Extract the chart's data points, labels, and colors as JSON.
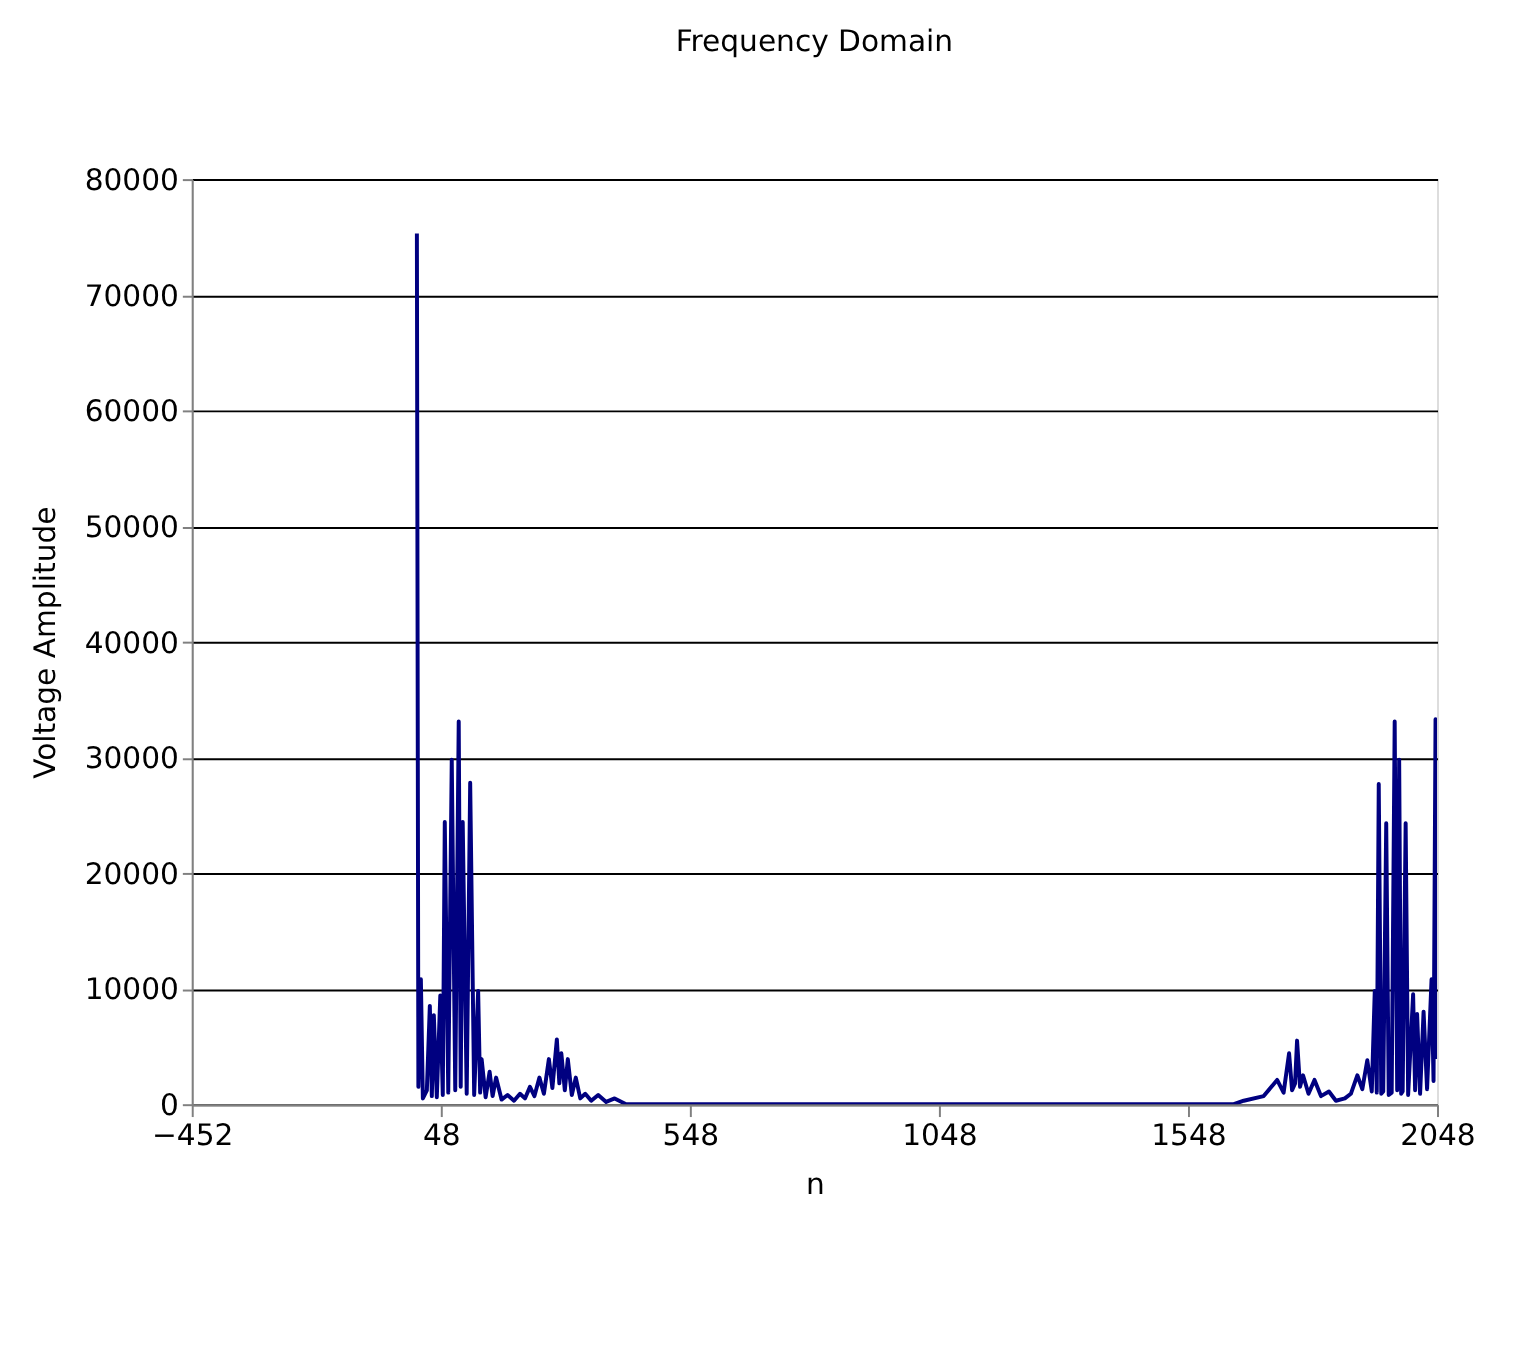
{
  "chart_data": {
    "type": "line",
    "title": "Frequency Domain",
    "xlabel": "n",
    "ylabel": "Voltage Amplitude",
    "xlim": [
      -452,
      2048
    ],
    "xticks": [
      -452,
      48,
      548,
      1048,
      1548,
      2048
    ],
    "ylim": [
      0,
      80000
    ],
    "yticks": [
      0,
      10000,
      20000,
      30000,
      40000,
      50000,
      60000,
      70000,
      80000
    ],
    "grid": "y",
    "marker": "none",
    "line_style": "solid",
    "series": [
      {
        "color": "#000080",
        "x": [
          0,
          3,
          8,
          12,
          20,
          26,
          30,
          34,
          40,
          47,
          52,
          56,
          63,
          70,
          77,
          84,
          88,
          92,
          100,
          107,
          115,
          123,
          127,
          130,
          138,
          146,
          152,
          159,
          170,
          182,
          195,
          207,
          217,
          227,
          236,
          246,
          255,
          265,
          272,
          281,
          286,
          290,
          297,
          303,
          311,
          319,
          328,
          338,
          350,
          364,
          380,
          397,
          420,
          1640,
          1660,
          1700,
          1727,
          1740,
          1751,
          1757,
          1763,
          1767,
          1773,
          1779,
          1790,
          1802,
          1815,
          1831,
          1845,
          1863,
          1875,
          1888,
          1898,
          1908,
          1917,
          1923,
          1927,
          1931,
          1936,
          1940,
          1946,
          1951,
          1957,
          1963,
          1968,
          1972,
          1976,
          1979,
          1985,
          1990,
          2000,
          2004,
          2008,
          2014,
          2021,
          2028,
          2037,
          2041,
          2045,
          2047
        ],
        "values": [
          75300,
          1500,
          10800,
          500,
          1200,
          8500,
          700,
          7700,
          600,
          9400,
          800,
          24400,
          1000,
          29800,
          1200,
          33100,
          1500,
          24400,
          900,
          27800,
          800,
          9800,
          1000,
          3900,
          600,
          2800,
          700,
          2300,
          400,
          800,
          300,
          900,
          500,
          1500,
          700,
          2300,
          900,
          3900,
          1400,
          5600,
          1800,
          4400,
          1200,
          3900,
          800,
          2300,
          500,
          900,
          300,
          800,
          200,
          500,
          0,
          0,
          300,
          700,
          2100,
          1000,
          4400,
          1200,
          1800,
          5500,
          1500,
          2500,
          900,
          2100,
          700,
          1100,
          300,
          500,
          900,
          2500,
          1300,
          3800,
          1100,
          9800,
          1000,
          27700,
          900,
          1100,
          24300,
          800,
          1000,
          33100,
          1200,
          29800,
          900,
          1100,
          24300,
          800,
          9500,
          1200,
          7800,
          900,
          8000,
          1300,
          10800,
          2000,
          33300,
          3900
        ]
      }
    ]
  }
}
